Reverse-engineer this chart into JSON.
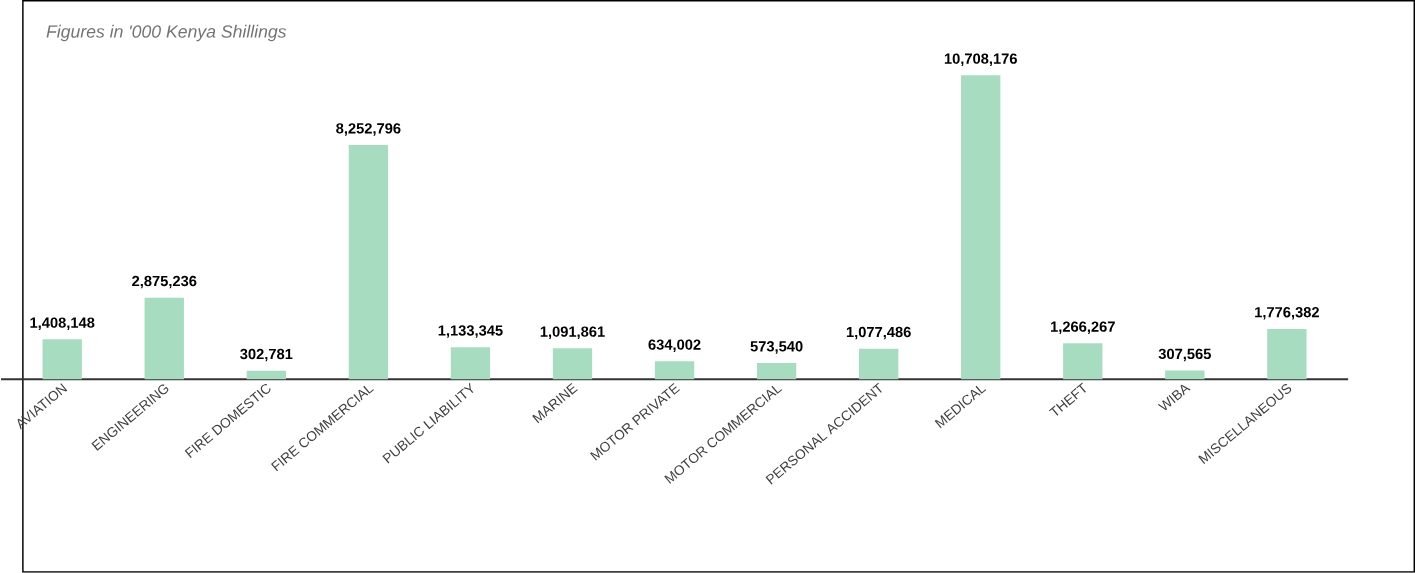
{
  "chart_data": {
    "type": "bar",
    "categories": [
      "AVIATION",
      "ENGINEERING",
      "FIRE DOMESTIC",
      "FIRE COMMERCIAL",
      "PUBLIC LIABILITY",
      "MARINE",
      "MOTOR PRIVATE",
      "MOTOR COMMERCIAL",
      "PERSONAL ACCIDENT",
      "MEDICAL",
      "THEFT",
      "WIBA",
      "MISCELLANEOUS"
    ],
    "values": [
      1408148,
      2875236,
      302781,
      8252796,
      1133345,
      1091861,
      634002,
      573540,
      1077486,
      10708176,
      1266267,
      307565,
      1776382
    ],
    "color": "#a8dcc0",
    "value_labels": [
      "1,408,148",
      "2,875,236",
      "302,781",
      "8,252,796",
      "1,133,345",
      "1,091,861",
      "634,002",
      "573,540",
      "1,077,486",
      "10,708,176",
      "1,266,267",
      "307,565",
      "1,776,382"
    ],
    "annotations": [
      "Figures in '000 Kenya Shillings"
    ]
  }
}
